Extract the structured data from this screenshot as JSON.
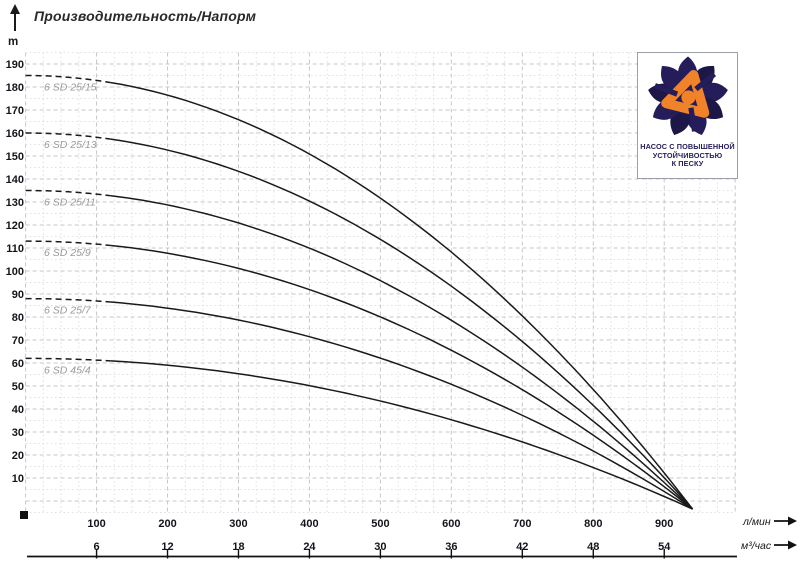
{
  "title": "Производительность/Напорм",
  "y_axis": {
    "unit": "m",
    "tick_labels": [
      190,
      180,
      170,
      160,
      150,
      140,
      130,
      120,
      110,
      100,
      90,
      80,
      70,
      60,
      50,
      40,
      30,
      20,
      10
    ]
  },
  "x_axis": {
    "row1": {
      "unit": "л/мин",
      "ticks": [
        100,
        200,
        300,
        400,
        500,
        600,
        700,
        800,
        900
      ]
    },
    "row2": {
      "unit": "м³/час",
      "ticks": [
        6,
        12,
        18,
        24,
        30,
        36,
        42,
        48,
        54
      ]
    }
  },
  "logo": {
    "caption_lines": [
      "НАСОС С ПОВЫШЕННОЙ",
      "УСТОЙЧИВОСТЬЮ",
      "К ПЕСКУ"
    ],
    "navy": "#241d5a",
    "orange": "#f08329"
  },
  "chart_data": {
    "type": "line",
    "title": "Производительность/Напорм",
    "ylabel": "m",
    "xlabel_primary": "л/мин",
    "xlabel_secondary": "м³/час",
    "x_range_lmin": [
      0,
      1000
    ],
    "y_range_m": [
      0,
      195
    ],
    "grid": "dotted",
    "legend_position": "inline-left-of-each-curve",
    "convergence_q_lmin": 940,
    "sample_q_lmin": [
      0,
      200,
      400,
      600,
      800,
      940
    ],
    "series": [
      {
        "name": "6 SD 25/15",
        "shutoff_head_m": 185,
        "head_m": [
          185,
          177,
          152,
          110,
          51,
          0
        ]
      },
      {
        "name": "6 SD 25/13",
        "shutoff_head_m": 160,
        "head_m": [
          160,
          153,
          131,
          95,
          44,
          0
        ]
      },
      {
        "name": "6 SD 25/11",
        "shutoff_head_m": 135,
        "head_m": [
          135,
          129,
          111,
          80,
          37,
          0
        ]
      },
      {
        "name": "6 SD 25/9",
        "shutoff_head_m": 113,
        "head_m": [
          113,
          108,
          93,
          67,
          31,
          0
        ]
      },
      {
        "name": "6 SD 25/7",
        "shutoff_head_m": 88,
        "head_m": [
          88,
          84,
          72,
          52,
          24,
          0
        ]
      },
      {
        "name": "6 SD 45/4",
        "shutoff_head_m": 62,
        "head_m": [
          62,
          59,
          51,
          37,
          17,
          0
        ]
      }
    ],
    "style": {
      "curve_color": "#1a1a1a",
      "curve_label_color": "#9a9a9a",
      "dashed_segment_end_q": 120
    }
  }
}
